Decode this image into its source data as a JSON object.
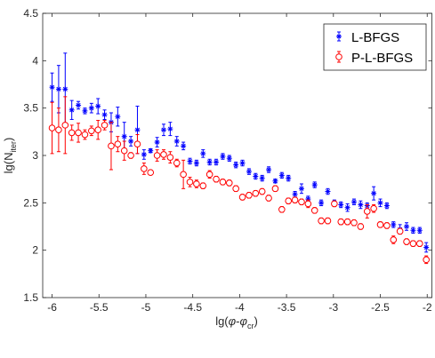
{
  "chart_data": {
    "type": "scatter",
    "xlabel": {
      "base": "lg(",
      "phi": "φ",
      "minus": "-",
      "phi2": "φ",
      "sub": "cr",
      "close": ")"
    },
    "ylabel": {
      "base": "lg(N",
      "sub": "iter",
      "close": ")"
    },
    "xlim": [
      -6.1,
      -1.95
    ],
    "ylim": [
      1.5,
      4.5
    ],
    "xticks": [
      -6,
      -5.5,
      -5,
      -4.5,
      -4,
      -3.5,
      -3,
      -2.5,
      -2
    ],
    "xtick_labels": [
      "-6",
      "-5.5",
      "-5",
      "-4.5",
      "-4",
      "-3.5",
      "-3",
      "-2.5",
      "-2"
    ],
    "yticks": [
      1.5,
      2,
      2.5,
      3,
      3.5,
      4,
      4.5
    ],
    "ytick_labels": [
      "1.5",
      "2",
      "2.5",
      "3",
      "3.5",
      "4",
      "4.5"
    ],
    "grid": false,
    "legend_position": "top-right",
    "series": [
      {
        "name": "L-BFGS",
        "color": "#0000ff",
        "marker": "asterisk",
        "x": [
          -6.0,
          -5.93,
          -5.86,
          -5.79,
          -5.72,
          -5.65,
          -5.58,
          -5.51,
          -5.44,
          -5.37,
          -5.3,
          -5.23,
          -5.16,
          -5.09,
          -5.02,
          -4.95,
          -4.88,
          -4.81,
          -4.74,
          -4.67,
          -4.6,
          -4.53,
          -4.46,
          -4.39,
          -4.32,
          -4.25,
          -4.18,
          -4.11,
          -4.04,
          -3.97,
          -3.9,
          -3.83,
          -3.76,
          -3.69,
          -3.62,
          -3.55,
          -3.48,
          -3.41,
          -3.34,
          -3.27,
          -3.2,
          -3.13,
          -3.06,
          -2.99,
          -2.92,
          -2.85,
          -2.78,
          -2.71,
          -2.64,
          -2.57,
          -2.5,
          -2.43,
          -2.36,
          -2.29,
          -2.22,
          -2.15,
          -2.08,
          -2.01
        ],
        "y": [
          3.72,
          3.7,
          3.7,
          3.48,
          3.53,
          3.47,
          3.5,
          3.52,
          3.43,
          3.35,
          3.41,
          3.2,
          3.15,
          3.27,
          3.01,
          3.05,
          3.14,
          3.27,
          3.28,
          3.15,
          3.1,
          2.94,
          2.92,
          3.02,
          2.93,
          2.93,
          2.99,
          2.97,
          2.9,
          2.92,
          2.83,
          2.78,
          2.76,
          2.85,
          2.73,
          2.79,
          2.76,
          2.59,
          2.65,
          2.54,
          2.69,
          2.5,
          2.62,
          2.5,
          2.48,
          2.45,
          2.51,
          2.48,
          2.47,
          2.6,
          2.5,
          2.47,
          2.27,
          2.22,
          2.25,
          2.21,
          2.21,
          2.03
        ],
        "err": [
          0.15,
          0.25,
          0.38,
          0.1,
          0.04,
          0.03,
          0.05,
          0.08,
          0.05,
          0.1,
          0.1,
          0.15,
          0.05,
          0.25,
          0.05,
          0.02,
          0.05,
          0.06,
          0.07,
          0.05,
          0.04,
          0.03,
          0.03,
          0.04,
          0.03,
          0.03,
          0.03,
          0.03,
          0.03,
          0.03,
          0.03,
          0.03,
          0.03,
          0.03,
          0.02,
          0.03,
          0.03,
          0.03,
          0.05,
          0.03,
          0.03,
          0.03,
          0.03,
          0.03,
          0.03,
          0.04,
          0.03,
          0.04,
          0.03,
          0.07,
          0.04,
          0.03,
          0.03,
          0.05,
          0.04,
          0.03,
          0.03,
          0.05
        ]
      },
      {
        "name": "P-L-BFGS",
        "color": "#ff0000",
        "marker": "circle",
        "x": [
          -6.0,
          -5.93,
          -5.86,
          -5.79,
          -5.72,
          -5.65,
          -5.58,
          -5.51,
          -5.44,
          -5.37,
          -5.3,
          -5.23,
          -5.16,
          -5.09,
          -5.02,
          -4.95,
          -4.88,
          -4.81,
          -4.74,
          -4.67,
          -4.6,
          -4.53,
          -4.46,
          -4.39,
          -4.32,
          -4.25,
          -4.18,
          -4.11,
          -4.04,
          -3.97,
          -3.9,
          -3.83,
          -3.76,
          -3.69,
          -3.62,
          -3.55,
          -3.48,
          -3.41,
          -3.34,
          -3.27,
          -3.2,
          -3.13,
          -3.06,
          -2.99,
          -2.92,
          -2.85,
          -2.78,
          -2.71,
          -2.64,
          -2.57,
          -2.5,
          -2.43,
          -2.36,
          -2.29,
          -2.22,
          -2.15,
          -2.08,
          -2.01
        ],
        "y": [
          3.29,
          3.27,
          3.32,
          3.24,
          3.24,
          3.22,
          3.26,
          3.27,
          3.32,
          3.1,
          3.12,
          3.05,
          3.0,
          3.12,
          2.86,
          2.82,
          3.0,
          3.01,
          2.98,
          2.92,
          2.8,
          2.72,
          2.7,
          2.68,
          2.8,
          2.75,
          2.72,
          2.71,
          2.65,
          2.56,
          2.58,
          2.6,
          2.62,
          2.55,
          2.65,
          2.43,
          2.52,
          2.53,
          2.51,
          2.49,
          2.42,
          2.31,
          2.31,
          2.49,
          2.3,
          2.3,
          2.29,
          2.25,
          2.41,
          2.44,
          2.27,
          2.26,
          2.11,
          2.2,
          2.09,
          2.07,
          2.07,
          1.9
        ],
        "err": [
          0.27,
          0.23,
          0.3,
          0.08,
          0.1,
          0.05,
          0.05,
          0.1,
          0.05,
          0.25,
          0.08,
          0.1,
          0.03,
          0.1,
          0.06,
          0.02,
          0.06,
          0.05,
          0.06,
          0.04,
          0.15,
          0.05,
          0.04,
          0.03,
          0.04,
          0.03,
          0.03,
          0.03,
          0.03,
          0.03,
          0.03,
          0.03,
          0.03,
          0.03,
          0.03,
          0.03,
          0.03,
          0.03,
          0.03,
          0.04,
          0.03,
          0.03,
          0.03,
          0.03,
          0.03,
          0.03,
          0.03,
          0.03,
          0.07,
          0.04,
          0.03,
          0.03,
          0.04,
          0.03,
          0.03,
          0.03,
          0.03,
          0.04
        ]
      }
    ]
  }
}
